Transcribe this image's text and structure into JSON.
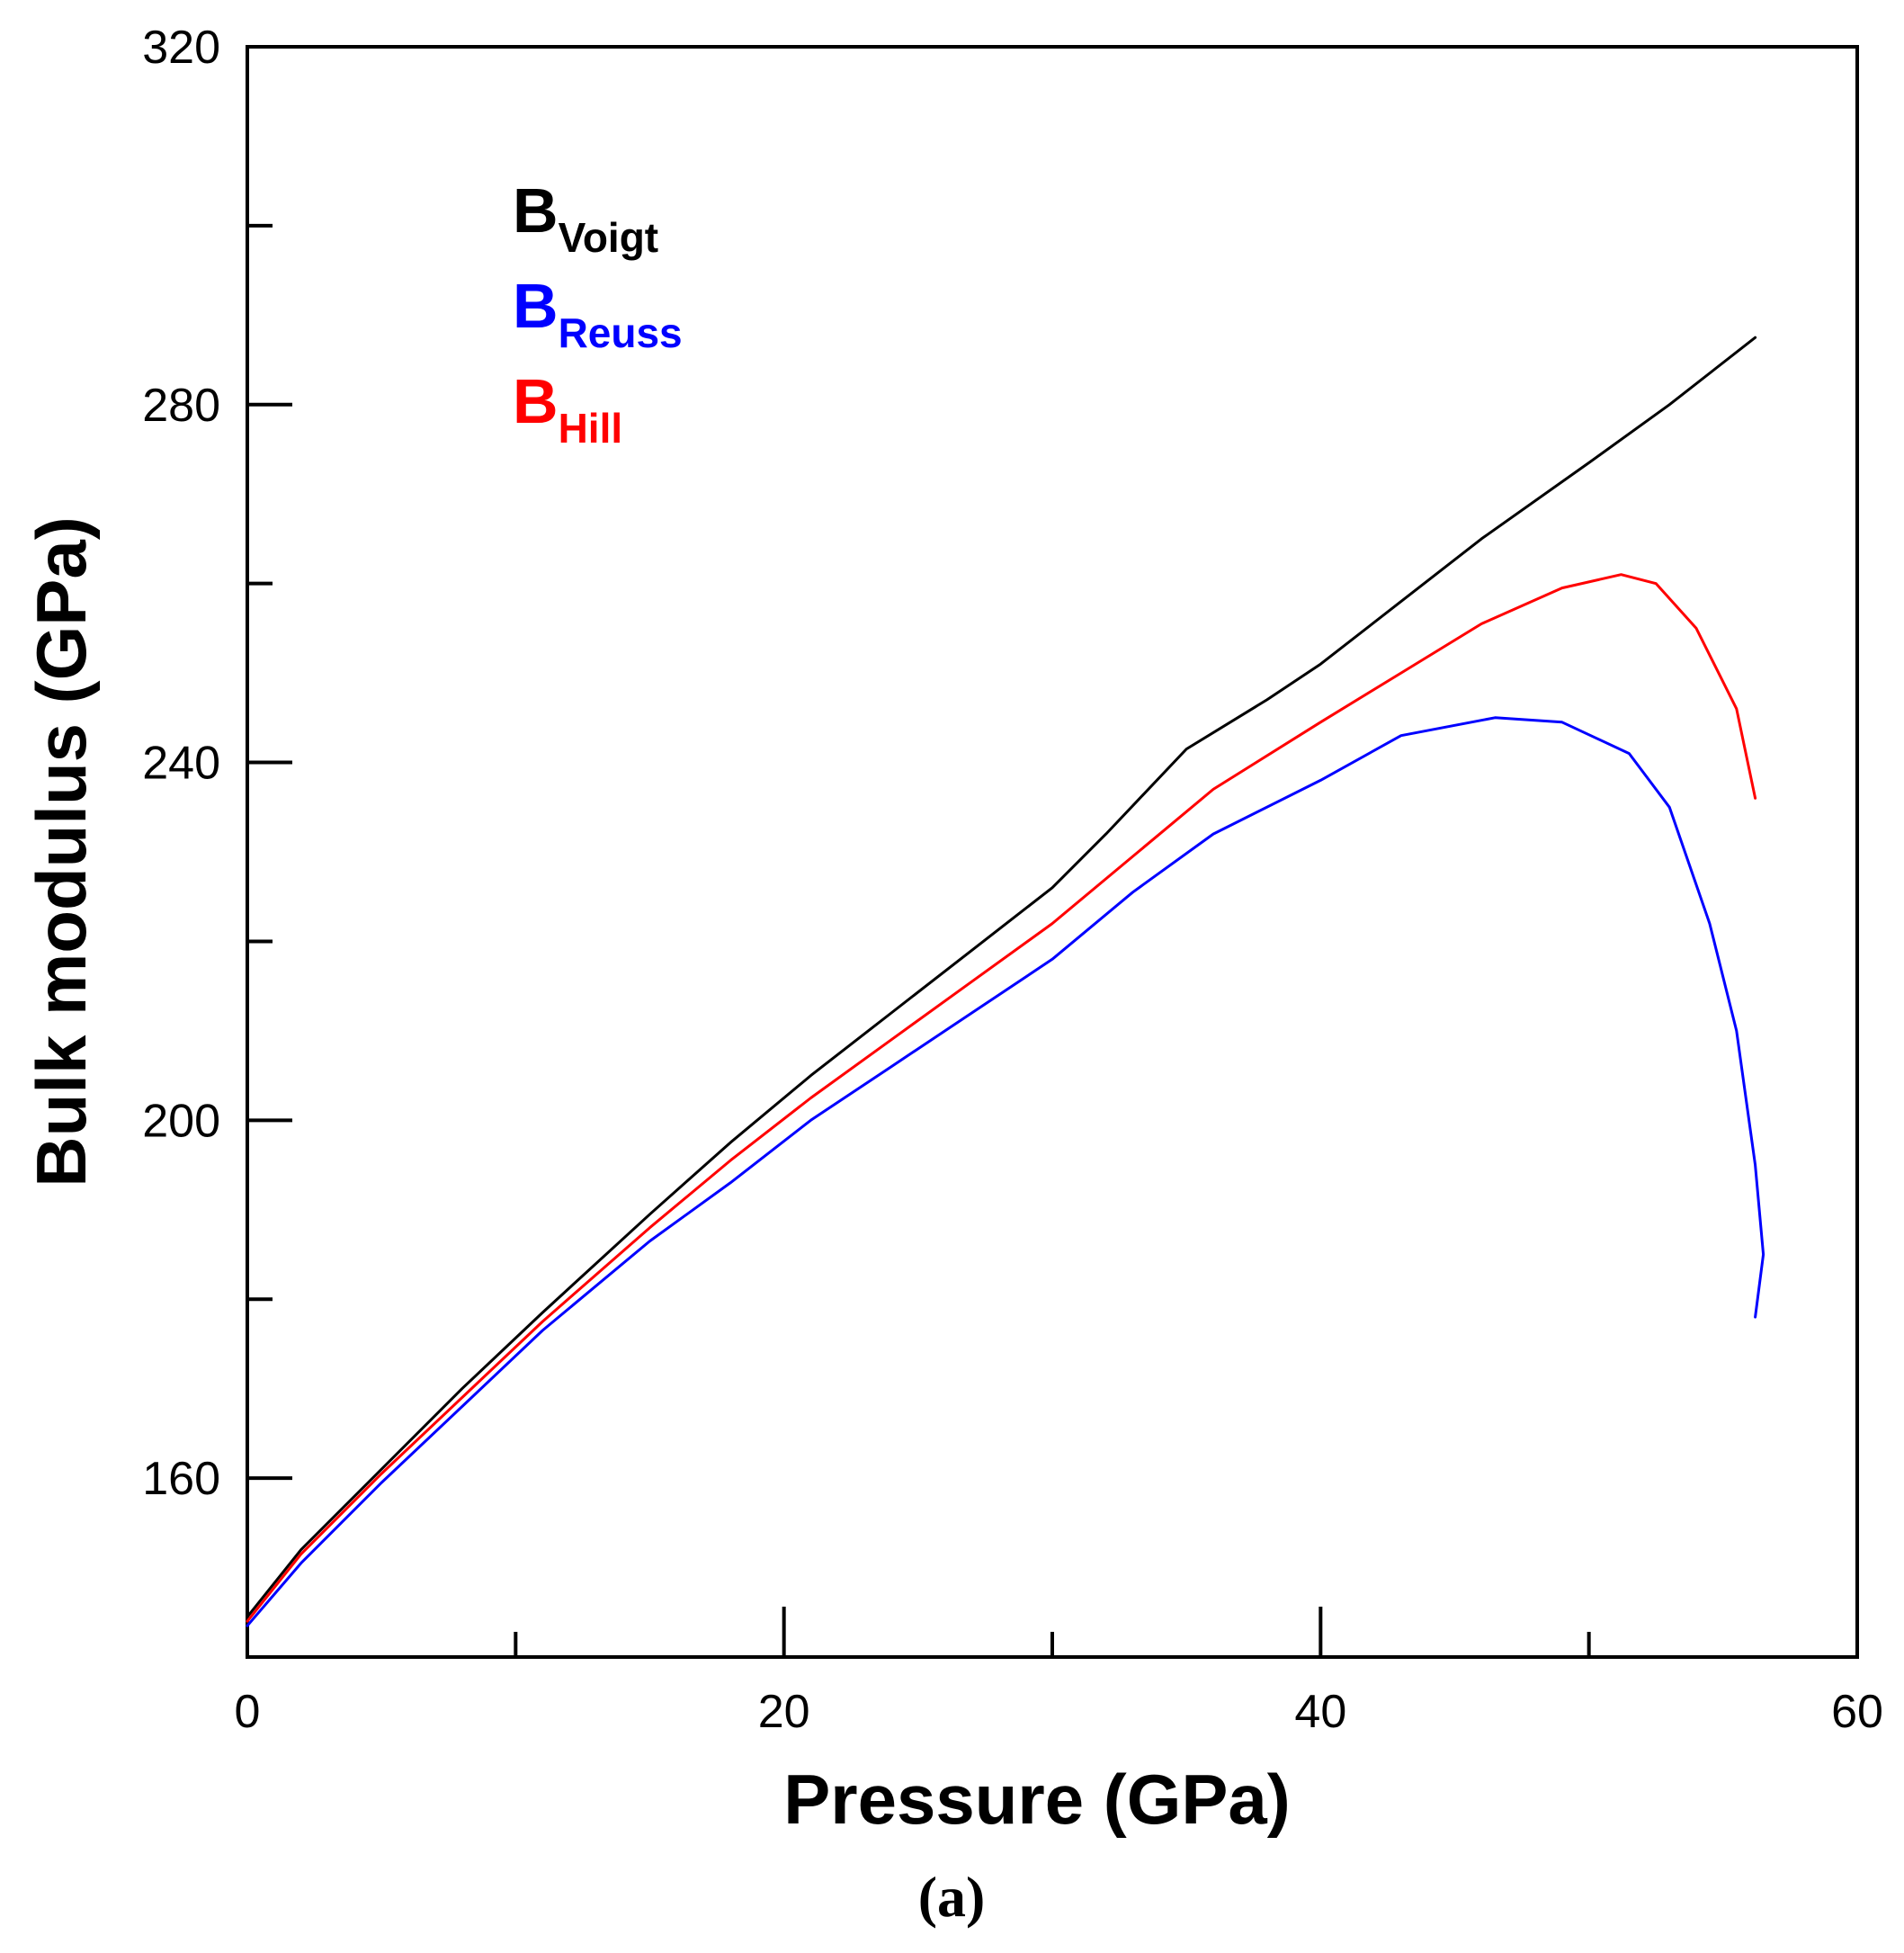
{
  "chart_data": {
    "type": "line",
    "title": "",
    "xlabel": "Pressure (GPa)",
    "ylabel": "Bulk modulus (GPa)",
    "xlim": [
      0,
      60
    ],
    "ylim": [
      140,
      320
    ],
    "x_ticks": [
      0,
      20,
      40,
      60
    ],
    "y_ticks": [
      160,
      200,
      240,
      280,
      320
    ],
    "x_minor_ticks": [
      10,
      30,
      50
    ],
    "y_minor_ticks": [
      140,
      180,
      220,
      260,
      300
    ],
    "grid": false,
    "caption": "(a)",
    "legend_position": "top-left",
    "series": [
      {
        "name": "B_Voigt",
        "label_main": "B",
        "label_sub": "Voigt",
        "color": "#000000",
        "x": [
          0,
          2,
          5,
          8,
          11,
          15,
          18,
          21,
          24,
          27,
          30,
          32,
          35,
          38,
          40,
          43,
          46,
          50,
          53,
          56.2
        ],
        "y": [
          144.5,
          152,
          161,
          170,
          178.5,
          189.5,
          197.5,
          205,
          212,
          219,
          226,
          232,
          241.5,
          247,
          251,
          258,
          265,
          273.5,
          280,
          287.5
        ]
      },
      {
        "name": "B_Reuss",
        "label_main": "B",
        "label_sub": "Reuss",
        "color": "#0000ff",
        "x": [
          0,
          2,
          5,
          8,
          11,
          15,
          18,
          21,
          24,
          27,
          30,
          33,
          36,
          40,
          43,
          46.5,
          49,
          51.5,
          53,
          54.5,
          55.5,
          56.2,
          56.5,
          56.2
        ],
        "y": [
          143.5,
          150.5,
          159.5,
          168,
          176.5,
          186.5,
          193,
          200,
          206,
          212,
          218,
          225.5,
          232,
          238,
          243,
          245,
          244.5,
          241,
          235,
          222,
          210,
          195,
          185,
          178
        ]
      },
      {
        "name": "B_Hill",
        "label_main": "B",
        "label_sub": "Hill",
        "color": "#ff0000",
        "x": [
          0,
          2,
          5,
          8,
          11,
          15,
          18,
          21,
          24,
          27,
          30,
          33,
          36,
          40,
          43,
          46,
          49,
          51.2,
          52.5,
          54,
          55.5,
          56.2
        ],
        "y": [
          144,
          151.5,
          160.5,
          169,
          177.5,
          188,
          195.5,
          202.5,
          209,
          215.5,
          222,
          229.5,
          237,
          244.5,
          250,
          255.5,
          259.5,
          261,
          260,
          255,
          246,
          236
        ]
      }
    ]
  }
}
